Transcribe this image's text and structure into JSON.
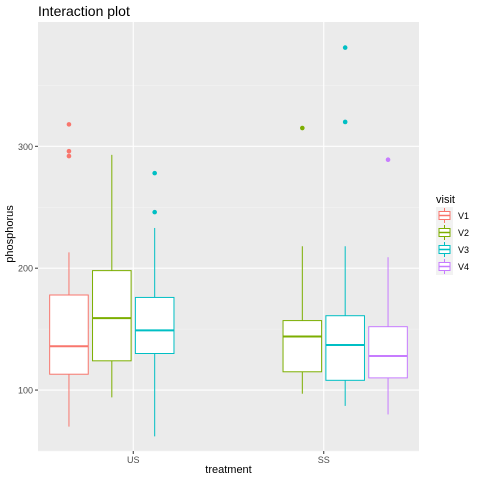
{
  "chart_data": {
    "type": "boxplot",
    "title": "Interaction plot",
    "xlabel": "treatment",
    "ylabel": "phosphorus",
    "categories": [
      "US",
      "SS"
    ],
    "yticks": [
      100,
      200,
      300
    ],
    "ylim": [
      50,
      402
    ],
    "grid": true,
    "legend": {
      "title": "visit",
      "position": "right",
      "entries": [
        "V1",
        "V2",
        "V3",
        "V4"
      ]
    },
    "series": [
      {
        "name": "V1",
        "color": "#F8766D",
        "boxes": [
          {
            "category": "US",
            "whisker_low": 70,
            "q1": 113,
            "median": 136,
            "q3": 178,
            "whisker_high": 213,
            "outliers": [
              292,
              296,
              318
            ]
          }
        ]
      },
      {
        "name": "V2",
        "color": "#7CAE00",
        "boxes": [
          {
            "category": "US",
            "whisker_low": 94,
            "q1": 124,
            "median": 159,
            "q3": 198,
            "whisker_high": 293,
            "outliers": []
          },
          {
            "category": "SS",
            "whisker_low": 97,
            "q1": 115,
            "median": 144,
            "q3": 157,
            "whisker_high": 218,
            "outliers": [
              315
            ]
          }
        ]
      },
      {
        "name": "V3",
        "color": "#00BFC4",
        "boxes": [
          {
            "category": "US",
            "whisker_low": 62,
            "q1": 130,
            "median": 149,
            "q3": 176,
            "whisker_high": 233,
            "outliers": [
              246,
              278
            ]
          },
          {
            "category": "SS",
            "whisker_low": 87,
            "q1": 108,
            "median": 137,
            "q3": 161,
            "whisker_high": 218,
            "outliers": [
              320,
              381
            ]
          }
        ]
      },
      {
        "name": "V4",
        "color": "#C77CFF",
        "boxes": [
          {
            "category": "SS",
            "whisker_low": 80,
            "q1": 110,
            "median": 128,
            "q3": 152,
            "whisker_high": 209,
            "outliers": [
              289
            ]
          }
        ]
      }
    ]
  }
}
